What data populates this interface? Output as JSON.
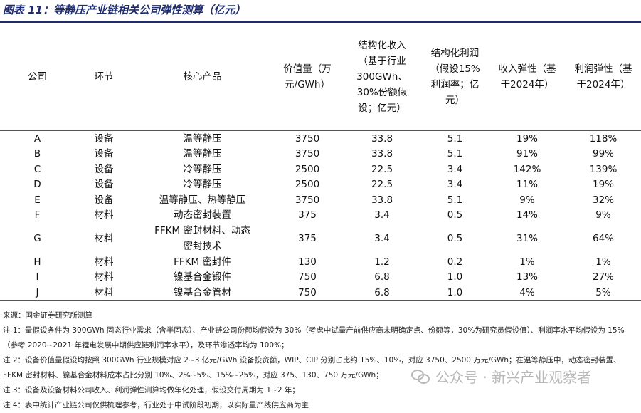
{
  "title": "图表 11：等静压产业链相关公司弹性测算（亿元）",
  "table": {
    "headers": [
      "公司",
      "环节",
      "核心产品",
      "价值量（万元/GWh）",
      "结构化收入（基于行业300GWh、30%份额假设；亿元）",
      "结构化利润（假设15%利润率；亿元）",
      "收入弹性（基于2024年）",
      "利润弹性（基于2024年）"
    ],
    "rows": [
      {
        "company": "A",
        "segment": "设备",
        "product": "温等静压",
        "value": "3750",
        "revenue": "33.8",
        "profit": "5.1",
        "rev_elasticity": "19%",
        "profit_elasticity": "118%"
      },
      {
        "company": "B",
        "segment": "设备",
        "product": "温等静压",
        "value": "3750",
        "revenue": "33.8",
        "profit": "5.1",
        "rev_elasticity": "91%",
        "profit_elasticity": "99%"
      },
      {
        "company": "C",
        "segment": "设备",
        "product": "冷等静压",
        "value": "2500",
        "revenue": "22.5",
        "profit": "3.4",
        "rev_elasticity": "142%",
        "profit_elasticity": "139%"
      },
      {
        "company": "D",
        "segment": "设备",
        "product": "冷等静压",
        "value": "2500",
        "revenue": "22.5",
        "profit": "3.4",
        "rev_elasticity": "11%",
        "profit_elasticity": "19%"
      },
      {
        "company": "E",
        "segment": "设备",
        "product": "温等静压、热等静压",
        "value": "3750",
        "revenue": "33.8",
        "profit": "5.1",
        "rev_elasticity": "9%",
        "profit_elasticity": "32%"
      },
      {
        "company": "F",
        "segment": "材料",
        "product": "动态密封装置",
        "value": "375",
        "revenue": "3.4",
        "profit": "0.5",
        "rev_elasticity": "14%",
        "profit_elasticity": "9%"
      },
      {
        "company": "G",
        "segment": "材料",
        "product": "FFKM 密封材料、动态密封技术",
        "value": "375",
        "revenue": "3.4",
        "profit": "0.5",
        "rev_elasticity": "31%",
        "profit_elasticity": "64%"
      },
      {
        "company": "H",
        "segment": "材料",
        "product": "FFKM 密封件",
        "value": "130",
        "revenue": "1.2",
        "profit": "0.2",
        "rev_elasticity": "1%",
        "profit_elasticity": "1%"
      },
      {
        "company": "I",
        "segment": "材料",
        "product": "镍基合金锻件",
        "value": "750",
        "revenue": "6.8",
        "profit": "1.0",
        "rev_elasticity": "13%",
        "profit_elasticity": "27%"
      },
      {
        "company": "J",
        "segment": "材料",
        "product": "镍基合金管材",
        "value": "750",
        "revenue": "6.8",
        "profit": "1.0",
        "rev_elasticity": "4%",
        "profit_elasticity": "5%"
      }
    ]
  },
  "notes": [
    "来源：国金证券研究所测算",
    "注 1：量假设条件为 300GWh 固态行业需求（含半固态）、产业链公司份额均假设为 30%（考虑中试量产前供应商未明确定点、份额等，30%为研究员假设值）、利润率水平均假设为 15%（参考 2020~2021 年锂电发展中期供应链利润率水平），及环节渗透率均为 100%；",
    "注 2：设备价值量假设均按照 300GWh 行业规模对应 2~3 亿元/GWh 设备投资额，WIP、CIP 分别占比约 15%、10%，对应 3750、2500 万元/GWh；在温等静压中，动态密封装置、FFKM 密封材料、镍基合金材料成本占比分别 10%、2%~5%、15%~25%，对应 375、130、750 万元/GWh；",
    "注 3：设备及设备材料公司收入、利润弹性测算均做年化处理，假设交付周期为 1~2 年；",
    "注 4：表中统计产业链公司仅供梳理参考，行业处于中试阶段初期，以实际量产线供应商为主"
  ],
  "watermark": "公众号 · 新兴产业观察者",
  "colors": {
    "title": "#1f2c6e",
    "rule": "#1f2c6e",
    "watermark": "#b8b8b8"
  }
}
